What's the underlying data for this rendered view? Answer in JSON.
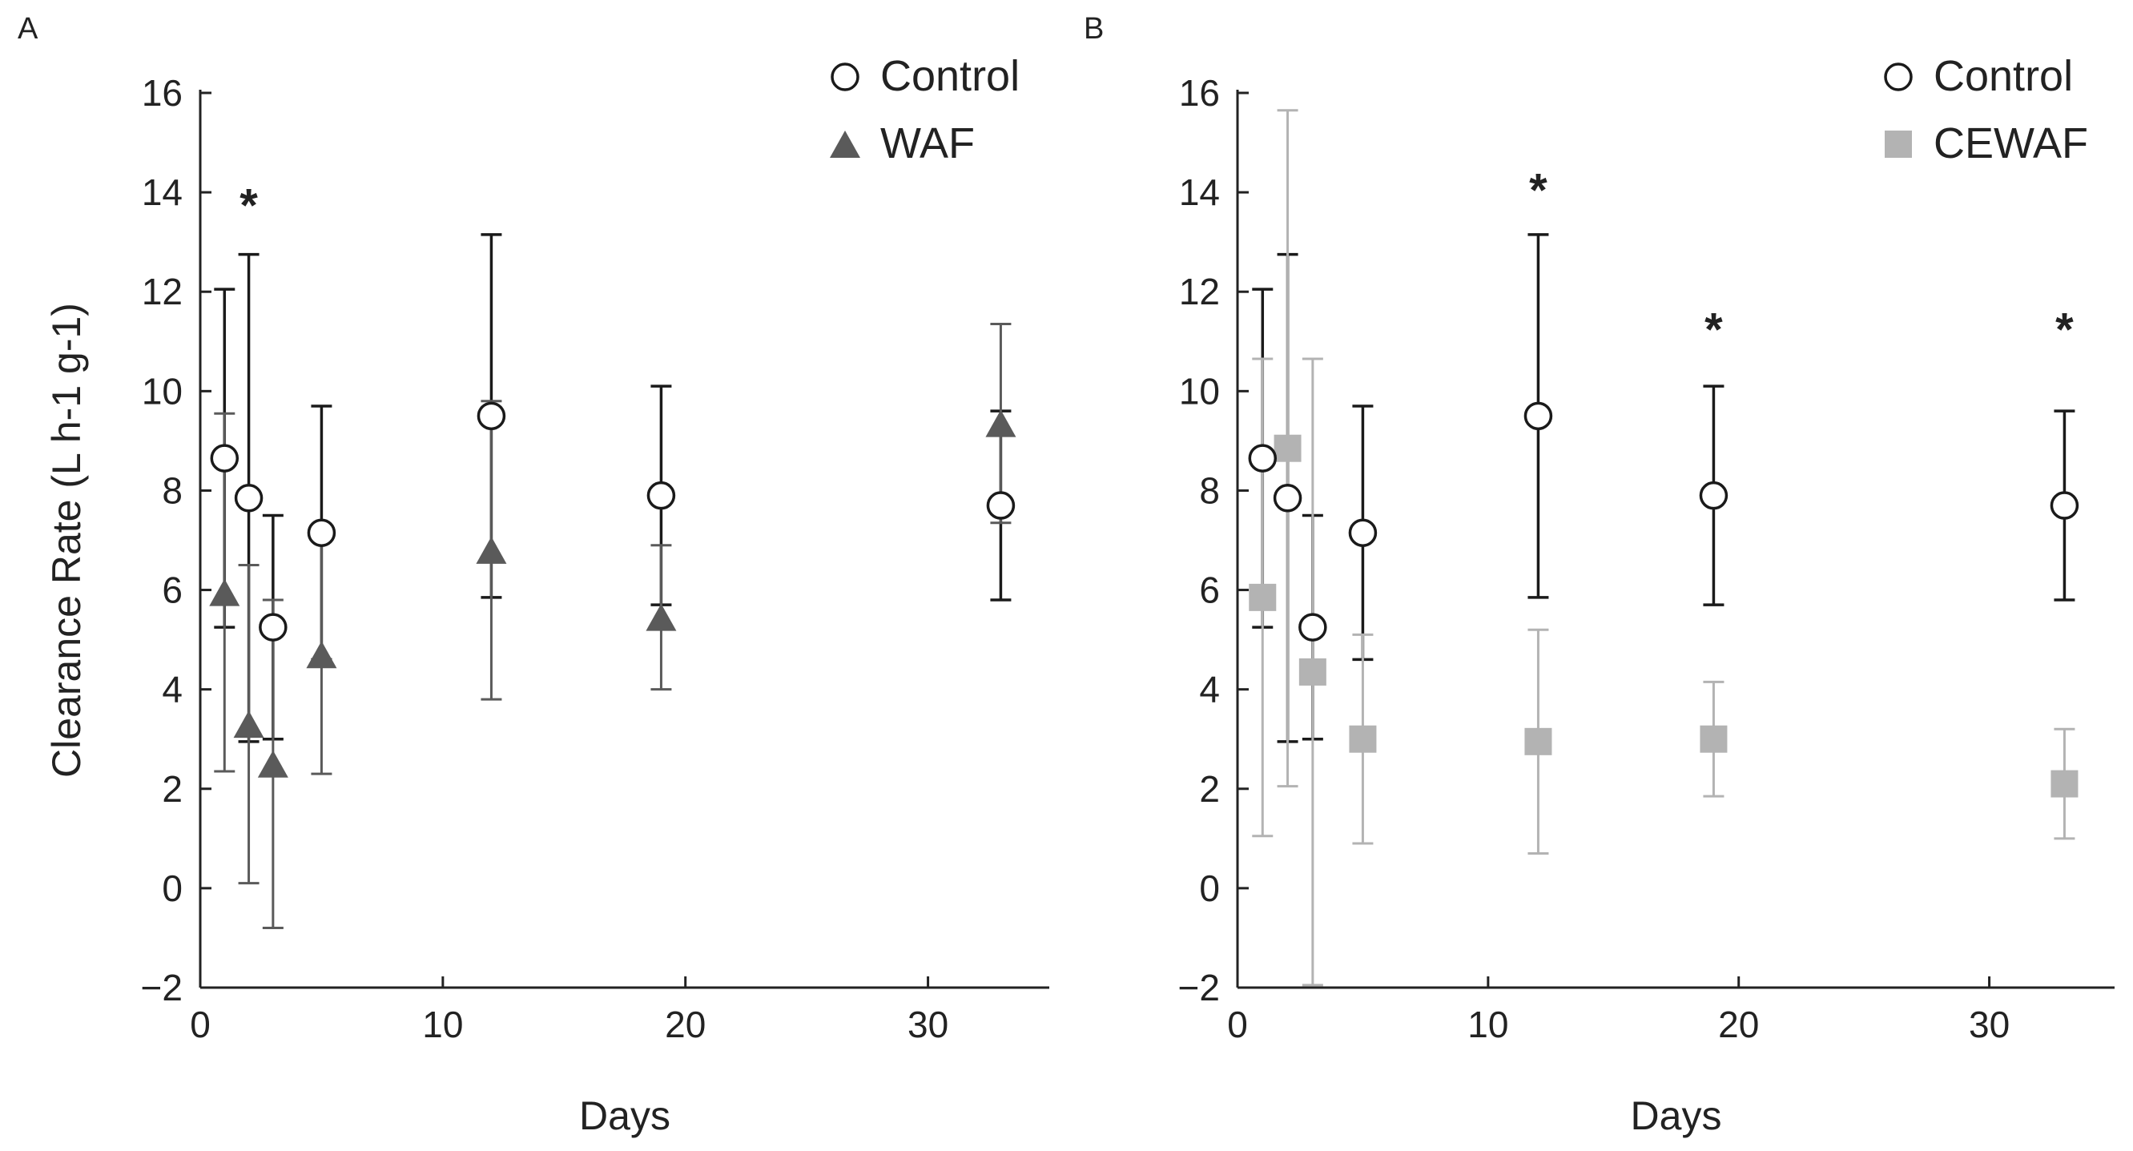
{
  "colors": {
    "control_stroke": "#1a1a1a",
    "control_fill": "#ffffff",
    "waf": "#5a5a5a",
    "cewaf": "#b3b3b3",
    "axis": "#222222"
  },
  "chart_data": [
    {
      "panel": "A",
      "type": "scatter",
      "xlabel": "Days",
      "ylabel": "Clearance Rate (L h-1 g-1)",
      "xlim": [
        0,
        35
      ],
      "ylim": [
        -2,
        16
      ],
      "xticks": [
        0,
        10,
        20,
        30
      ],
      "yticks": [
        -2,
        0,
        2,
        4,
        6,
        8,
        10,
        12,
        14,
        16
      ],
      "legend_position": "top-right",
      "series": [
        {
          "name": "Control",
          "marker": "circle",
          "points": [
            {
              "x": 1,
              "y": 8.65,
              "err": 3.4
            },
            {
              "x": 2,
              "y": 7.85,
              "err": 4.9
            },
            {
              "x": 3,
              "y": 5.25,
              "err": 2.25
            },
            {
              "x": 5,
              "y": 7.15,
              "err": 2.55
            },
            {
              "x": 12,
              "y": 9.5,
              "err": 3.65
            },
            {
              "x": 19,
              "y": 7.9,
              "err": 2.2
            },
            {
              "x": 33,
              "y": 7.7,
              "err": 1.9
            }
          ]
        },
        {
          "name": "WAF",
          "marker": "triangle",
          "points": [
            {
              "x": 1,
              "y": 5.95,
              "err": 3.6
            },
            {
              "x": 2,
              "y": 3.3,
              "err": 3.2
            },
            {
              "x": 3,
              "y": 2.5,
              "err": 3.3
            },
            {
              "x": 5,
              "y": 4.7,
              "err": 2.4
            },
            {
              "x": 12,
              "y": 6.8,
              "err": 3.0
            },
            {
              "x": 19,
              "y": 5.45,
              "err": 1.45
            },
            {
              "x": 33,
              "y": 9.35,
              "err": 2.0
            }
          ]
        }
      ],
      "annotations": [
        {
          "text": "*",
          "x": 2,
          "y": 13.9
        }
      ]
    },
    {
      "panel": "B",
      "type": "scatter",
      "xlabel": "Days",
      "ylabel": "",
      "xlim": [
        0,
        35
      ],
      "ylim": [
        -2,
        16
      ],
      "xticks": [
        0,
        10,
        20,
        30
      ],
      "yticks": [
        -2,
        0,
        2,
        4,
        6,
        8,
        10,
        12,
        14,
        16
      ],
      "legend_position": "top-right",
      "series": [
        {
          "name": "Control",
          "marker": "circle",
          "points": [
            {
              "x": 1,
              "y": 8.65,
              "err": 3.4
            },
            {
              "x": 2,
              "y": 7.85,
              "err": 4.9
            },
            {
              "x": 3,
              "y": 5.25,
              "err": 2.25
            },
            {
              "x": 5,
              "y": 7.15,
              "err": 2.55
            },
            {
              "x": 12,
              "y": 9.5,
              "err": 3.65
            },
            {
              "x": 19,
              "y": 7.9,
              "err": 2.2
            },
            {
              "x": 33,
              "y": 7.7,
              "err": 1.9
            }
          ]
        },
        {
          "name": "CEWAF",
          "marker": "square",
          "points": [
            {
              "x": 1,
              "y": 5.85,
              "err": 4.8
            },
            {
              "x": 2,
              "y": 8.85,
              "err": 6.8
            },
            {
              "x": 3,
              "y": 4.35,
              "err": 6.3
            },
            {
              "x": 5,
              "y": 3.0,
              "err": 2.1
            },
            {
              "x": 12,
              "y": 2.95,
              "err": 2.25
            },
            {
              "x": 19,
              "y": 3.0,
              "err": 1.15
            },
            {
              "x": 33,
              "y": 2.1,
              "err": 1.1
            }
          ]
        }
      ],
      "annotations": [
        {
          "text": "*",
          "x": 12,
          "y": 14.2
        },
        {
          "text": "*",
          "x": 19,
          "y": 11.4
        },
        {
          "text": "*",
          "x": 33,
          "y": 11.4
        }
      ]
    }
  ]
}
